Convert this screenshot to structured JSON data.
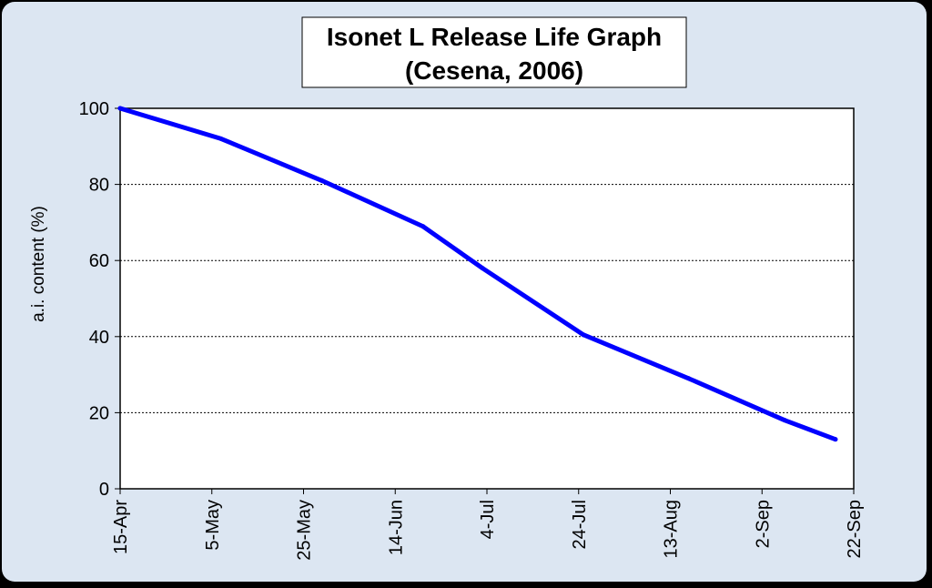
{
  "chart_data": {
    "type": "line",
    "title_line1": "Isonet L Release Life Graph",
    "title_line2": "(Cesena, 2006)",
    "xlabel": "",
    "ylabel": "a.i. content  (%)",
    "x_ticks": [
      "15-Apr",
      "5-May",
      "25-May",
      "14-Jun",
      "4-Jul",
      "24-Jul",
      "13-Aug",
      "2-Sep",
      "22-Sep"
    ],
    "y_ticks": [
      "0",
      "20",
      "40",
      "60",
      "80",
      "100"
    ],
    "ylim": [
      0,
      100
    ],
    "grid": "horizontal dotted",
    "legend": "none",
    "series": [
      {
        "x": [
          "15-Apr",
          "7-May",
          "29-May",
          "20-Jun",
          "3-Jul",
          "25-Jul",
          "17-Aug",
          "7-Sep",
          "18-Sep"
        ],
        "values": [
          100,
          92,
          81,
          69,
          58,
          40.5,
          29,
          18,
          13
        ]
      }
    ]
  },
  "colors": {
    "frame_background": "#dce6f2",
    "plot_background": "#ffffff",
    "line": "#0000ff",
    "axis": "#000000"
  }
}
